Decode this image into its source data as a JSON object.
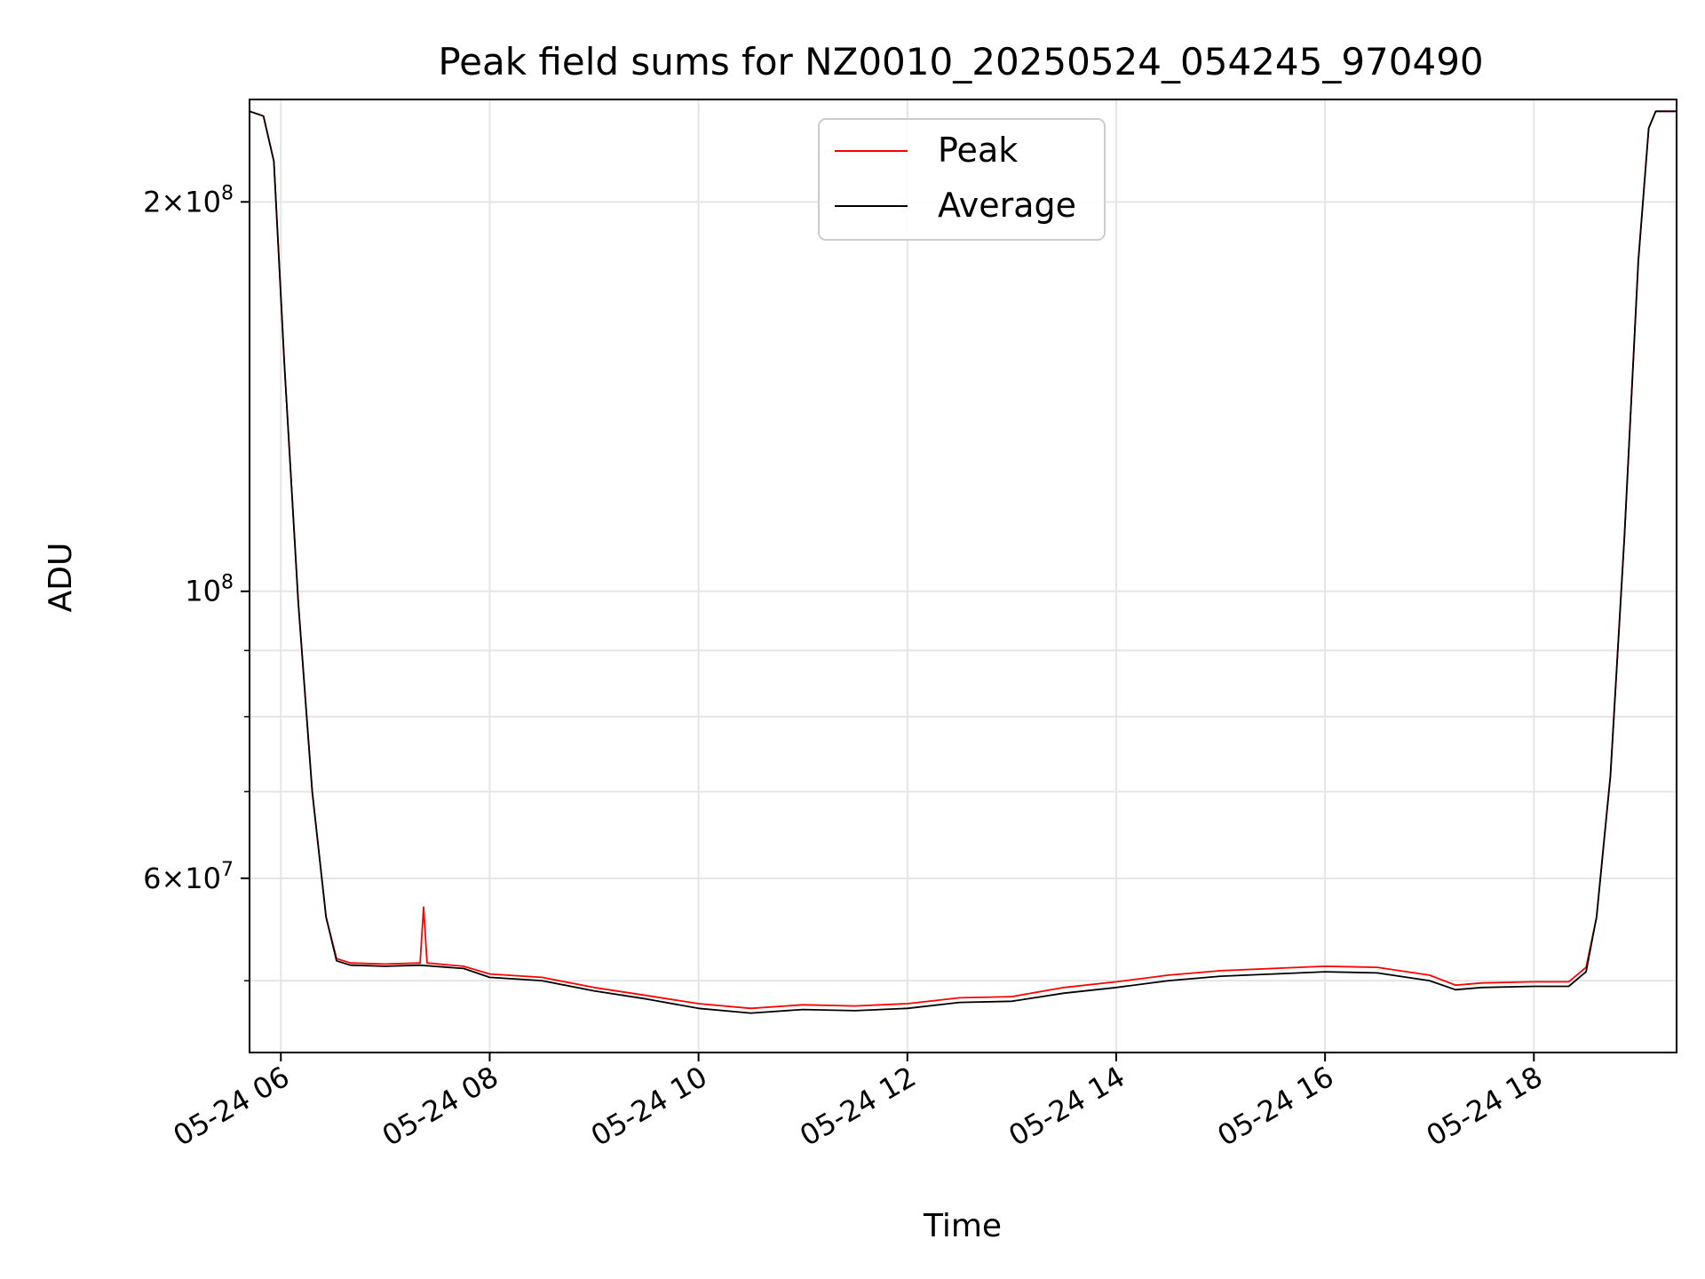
{
  "chart_data": {
    "type": "line",
    "title": "Peak field sums for NZ0010_20250524_054245_970490",
    "xlabel": "Time",
    "ylabel": "ADU",
    "x_range": [
      "2025-05-24 05:42",
      "2025-05-24 19:22"
    ],
    "y_range": [
      44000000,
      240000000
    ],
    "y_scale": "log",
    "grid": true,
    "legend_position": "upper center",
    "x_ticks": [
      {
        "value": "2025-05-24 06:00",
        "label": "05-24 06"
      },
      {
        "value": "2025-05-24 08:00",
        "label": "05-24 08"
      },
      {
        "value": "2025-05-24 10:00",
        "label": "05-24 10"
      },
      {
        "value": "2025-05-24 12:00",
        "label": "05-24 12"
      },
      {
        "value": "2025-05-24 14:00",
        "label": "05-24 14"
      },
      {
        "value": "2025-05-24 16:00",
        "label": "05-24 16"
      },
      {
        "value": "2025-05-24 18:00",
        "label": "05-24 18"
      }
    ],
    "y_major_ticks": [
      {
        "value": 60000000,
        "mantissa": "6",
        "exponent": "7"
      },
      {
        "value": 100000000,
        "mantissa": "",
        "exponent": "8"
      },
      {
        "value": 200000000,
        "mantissa": "2",
        "exponent": "8"
      }
    ],
    "y_minor_ticks": [
      50000000,
      70000000,
      80000000,
      90000000
    ],
    "series": [
      {
        "name": "Peak",
        "color": "#ff0000",
        "points": [
          [
            "2025-05-24 05:42",
            235000000
          ],
          [
            "2025-05-24 05:50",
            233000000
          ],
          [
            "2025-05-24 05:56",
            215000000
          ],
          [
            "2025-05-24 06:02",
            150000000
          ],
          [
            "2025-05-24 06:10",
            98000000
          ],
          [
            "2025-05-24 06:18",
            70000000
          ],
          [
            "2025-05-24 06:26",
            56000000
          ],
          [
            "2025-05-24 06:32",
            52000000
          ],
          [
            "2025-05-24 06:40",
            51600000
          ],
          [
            "2025-05-24 07:00",
            51500000
          ],
          [
            "2025-05-24 07:20",
            51600000
          ],
          [
            "2025-05-24 07:22",
            57000000
          ],
          [
            "2025-05-24 07:24",
            51600000
          ],
          [
            "2025-05-24 07:45",
            51300000
          ],
          [
            "2025-05-24 08:00",
            50600000
          ],
          [
            "2025-05-24 08:30",
            50300000
          ],
          [
            "2025-05-24 09:00",
            49400000
          ],
          [
            "2025-05-24 09:30",
            48700000
          ],
          [
            "2025-05-24 10:00",
            48000000
          ],
          [
            "2025-05-24 10:30",
            47600000
          ],
          [
            "2025-05-24 11:00",
            47900000
          ],
          [
            "2025-05-24 11:30",
            47800000
          ],
          [
            "2025-05-24 12:00",
            48000000
          ],
          [
            "2025-05-24 12:30",
            48500000
          ],
          [
            "2025-05-24 13:00",
            48600000
          ],
          [
            "2025-05-24 13:30",
            49400000
          ],
          [
            "2025-05-24 14:00",
            49900000
          ],
          [
            "2025-05-24 14:30",
            50500000
          ],
          [
            "2025-05-24 15:00",
            50900000
          ],
          [
            "2025-05-24 15:30",
            51100000
          ],
          [
            "2025-05-24 16:00",
            51300000
          ],
          [
            "2025-05-24 16:30",
            51200000
          ],
          [
            "2025-05-24 17:00",
            50500000
          ],
          [
            "2025-05-24 17:15",
            49600000
          ],
          [
            "2025-05-24 17:30",
            49800000
          ],
          [
            "2025-05-24 18:00",
            49900000
          ],
          [
            "2025-05-24 18:20",
            49900000
          ],
          [
            "2025-05-24 18:30",
            51200000
          ],
          [
            "2025-05-24 18:36",
            56000000
          ],
          [
            "2025-05-24 18:44",
            72000000
          ],
          [
            "2025-05-24 18:52",
            110000000
          ],
          [
            "2025-05-24 19:00",
            180000000
          ],
          [
            "2025-05-24 19:06",
            228000000
          ],
          [
            "2025-05-24 19:10",
            235000000
          ],
          [
            "2025-05-24 19:22",
            235000000
          ]
        ]
      },
      {
        "name": "Average",
        "color": "#000000",
        "points": [
          [
            "2025-05-24 05:42",
            235000000
          ],
          [
            "2025-05-24 05:50",
            233000000
          ],
          [
            "2025-05-24 05:56",
            215000000
          ],
          [
            "2025-05-24 06:02",
            150000000
          ],
          [
            "2025-05-24 06:10",
            98000000
          ],
          [
            "2025-05-24 06:18",
            70000000
          ],
          [
            "2025-05-24 06:26",
            56000000
          ],
          [
            "2025-05-24 06:32",
            51800000
          ],
          [
            "2025-05-24 06:40",
            51400000
          ],
          [
            "2025-05-24 07:00",
            51300000
          ],
          [
            "2025-05-24 07:20",
            51400000
          ],
          [
            "2025-05-24 07:45",
            51100000
          ],
          [
            "2025-05-24 08:00",
            50300000
          ],
          [
            "2025-05-24 08:30",
            50000000
          ],
          [
            "2025-05-24 09:00",
            49100000
          ],
          [
            "2025-05-24 09:30",
            48400000
          ],
          [
            "2025-05-24 10:00",
            47600000
          ],
          [
            "2025-05-24 10:30",
            47200000
          ],
          [
            "2025-05-24 11:00",
            47500000
          ],
          [
            "2025-05-24 11:30",
            47400000
          ],
          [
            "2025-05-24 12:00",
            47600000
          ],
          [
            "2025-05-24 12:30",
            48100000
          ],
          [
            "2025-05-24 13:00",
            48200000
          ],
          [
            "2025-05-24 13:30",
            48900000
          ],
          [
            "2025-05-24 14:00",
            49400000
          ],
          [
            "2025-05-24 14:30",
            50000000
          ],
          [
            "2025-05-24 15:00",
            50400000
          ],
          [
            "2025-05-24 15:30",
            50600000
          ],
          [
            "2025-05-24 16:00",
            50800000
          ],
          [
            "2025-05-24 16:30",
            50700000
          ],
          [
            "2025-05-24 17:00",
            50000000
          ],
          [
            "2025-05-24 17:15",
            49200000
          ],
          [
            "2025-05-24 17:30",
            49400000
          ],
          [
            "2025-05-24 18:00",
            49500000
          ],
          [
            "2025-05-24 18:20",
            49500000
          ],
          [
            "2025-05-24 18:30",
            50800000
          ],
          [
            "2025-05-24 18:36",
            56000000
          ],
          [
            "2025-05-24 18:44",
            72000000
          ],
          [
            "2025-05-24 18:52",
            110000000
          ],
          [
            "2025-05-24 19:00",
            180000000
          ],
          [
            "2025-05-24 19:06",
            228000000
          ],
          [
            "2025-05-24 19:10",
            235000000
          ],
          [
            "2025-05-24 19:22",
            235000000
          ]
        ]
      }
    ]
  }
}
